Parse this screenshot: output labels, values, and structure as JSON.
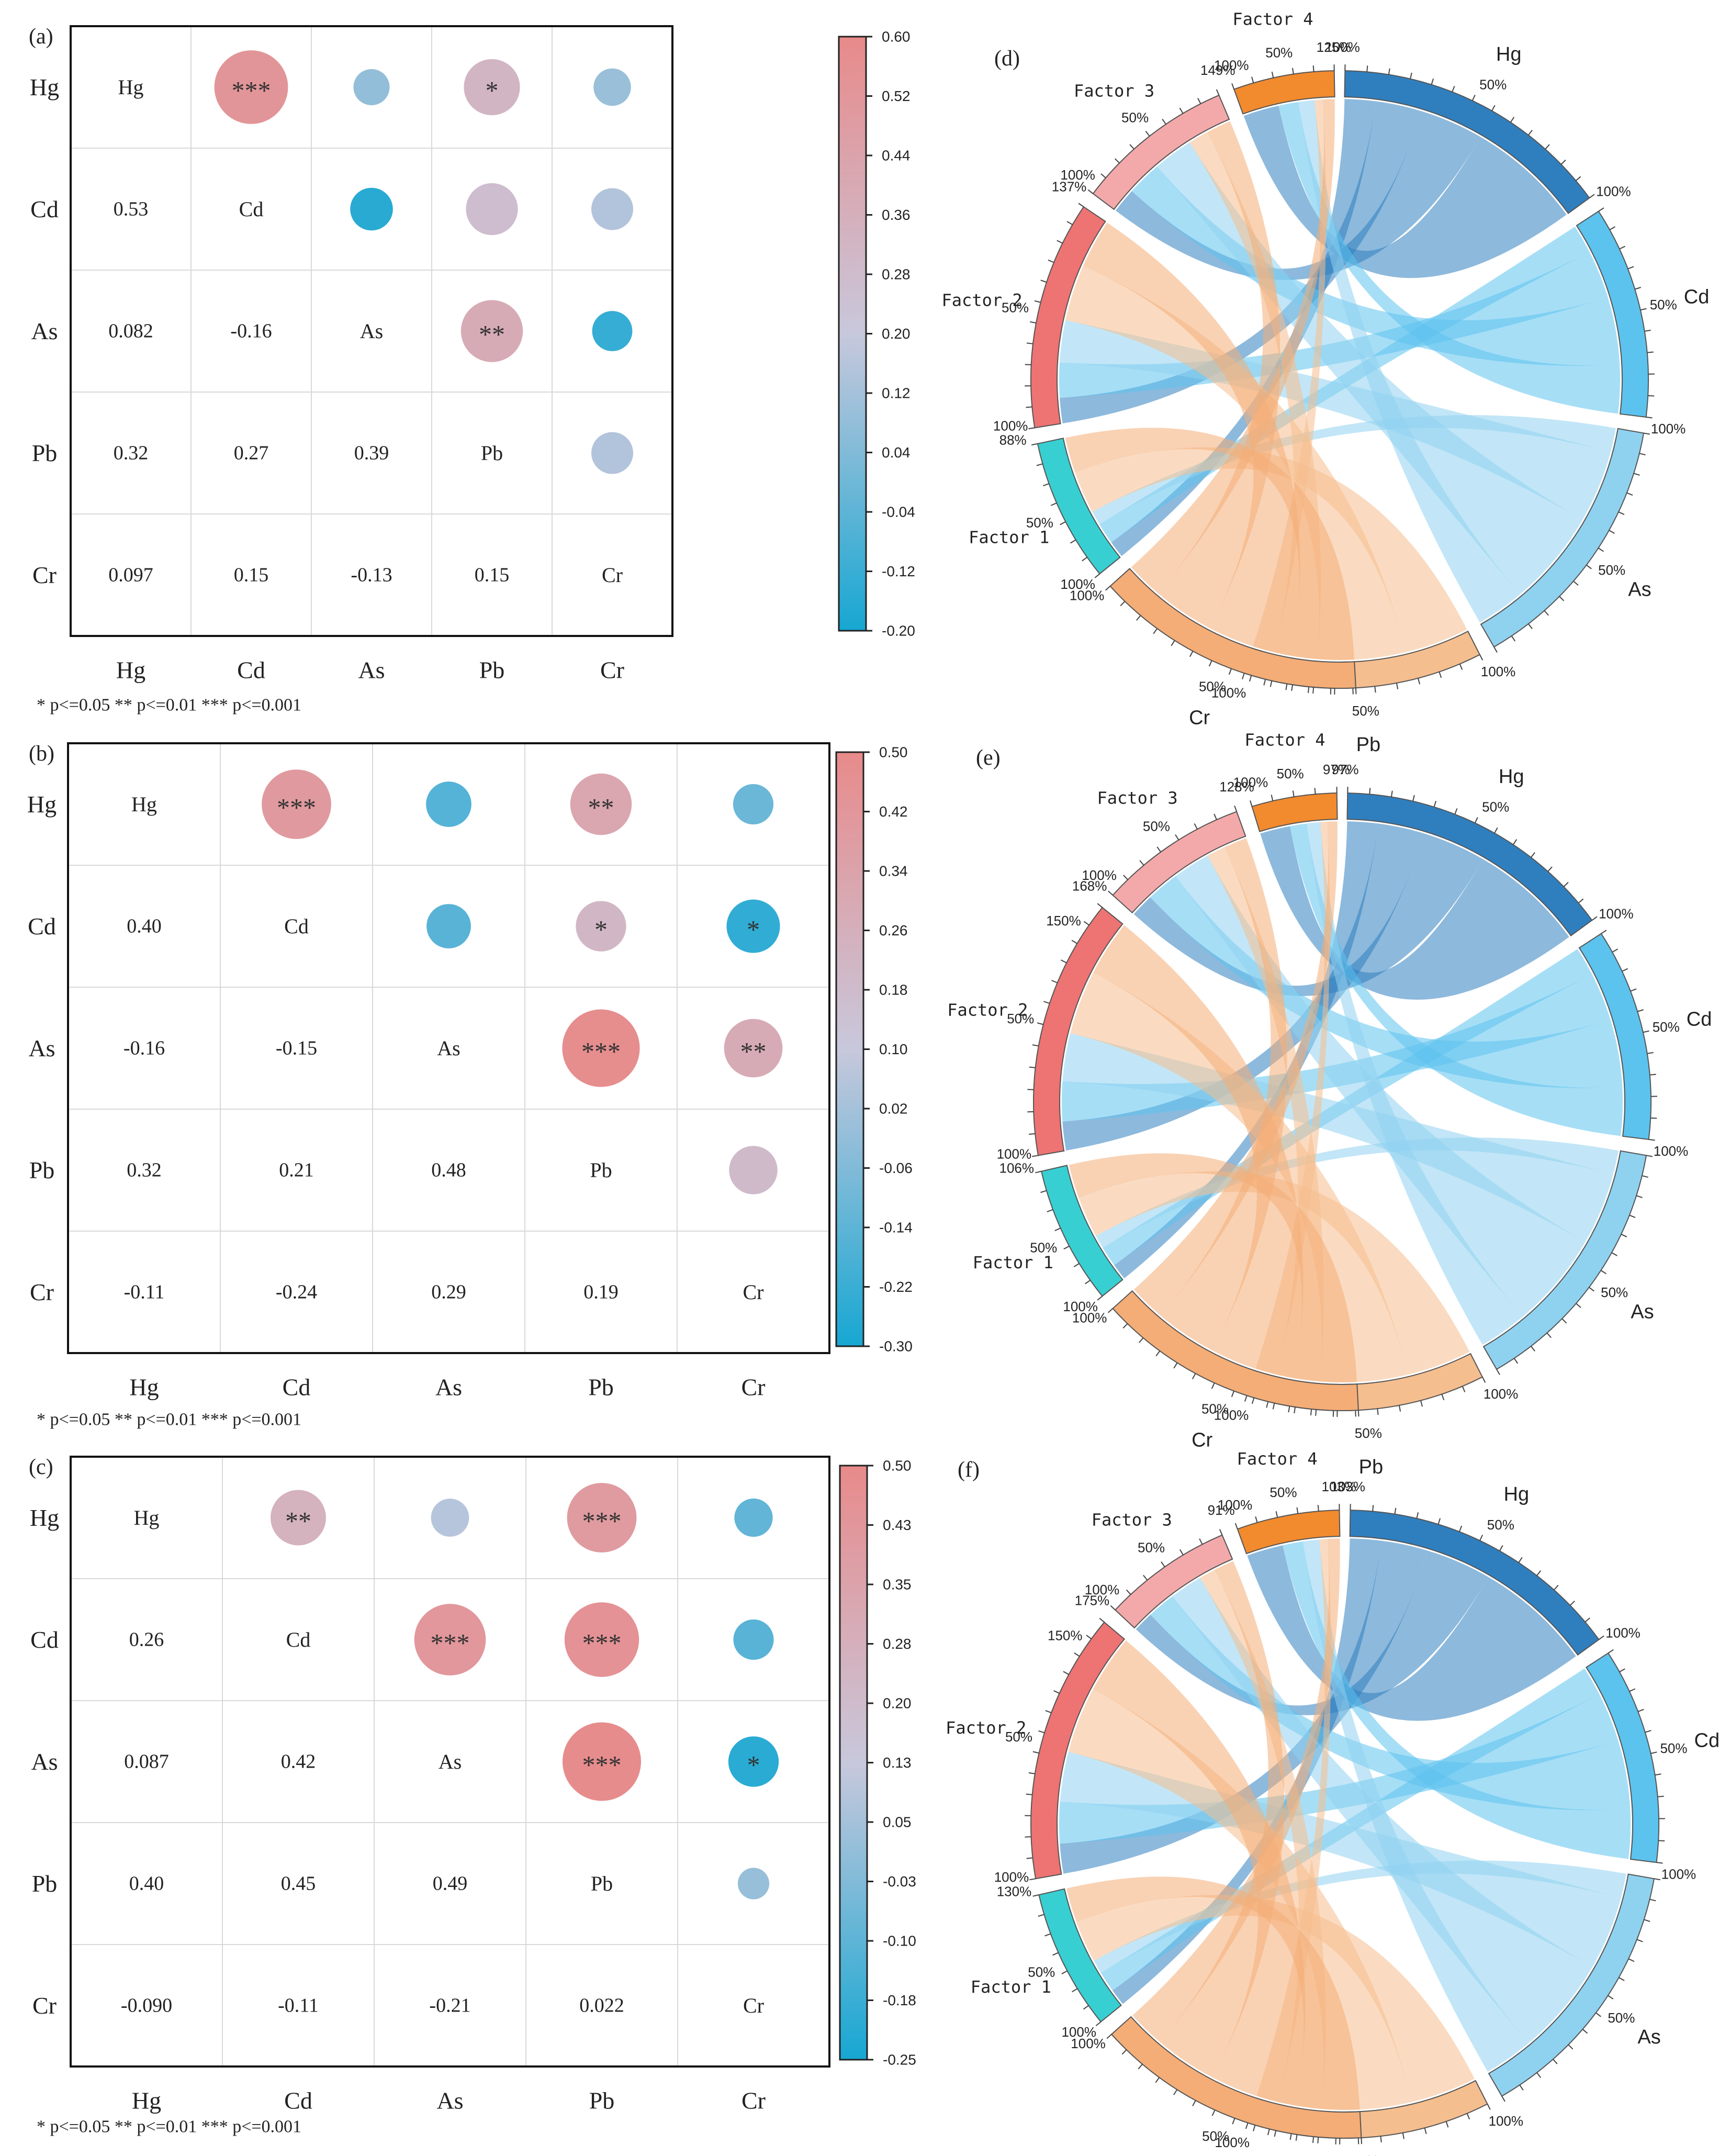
{
  "chart_data": [
    {
      "type": "heatmap",
      "panel_label": "(a)",
      "labels": [
        "Hg",
        "Cd",
        "As",
        "Pb",
        "Cr"
      ],
      "lower": [
        [
          "",
          "",
          "",
          "",
          ""
        ],
        [
          "0.53",
          "",
          "",
          "",
          ""
        ],
        [
          "0.082",
          "-0.16",
          "",
          "",
          ""
        ],
        [
          "0.32",
          "0.27",
          "0.39",
          "",
          ""
        ],
        [
          "0.097",
          "0.15",
          "-0.13",
          "0.15",
          ""
        ]
      ],
      "upper_values": [
        [
          null,
          0.53,
          0.082,
          0.32,
          0.097
        ],
        [
          null,
          null,
          -0.16,
          0.27,
          0.15
        ],
        [
          null,
          null,
          null,
          0.39,
          -0.13
        ],
        [
          null,
          null,
          null,
          null,
          0.15
        ],
        [
          null,
          null,
          null,
          null,
          null
        ]
      ],
      "significance": [
        [
          "",
          "***",
          "",
          "*",
          ""
        ],
        [
          "",
          "",
          "",
          "",
          ""
        ],
        [
          "",
          "",
          "",
          "**",
          ""
        ],
        [
          "",
          "",
          "",
          "",
          ""
        ],
        [
          "",
          "",
          "",
          "",
          ""
        ]
      ],
      "colorbar": {
        "min": -0.2,
        "max": 0.6,
        "ticks": [
          "0.60",
          "0.52",
          "0.44",
          "0.36",
          "0.28",
          "0.20",
          "0.12",
          "0.04",
          "-0.04",
          "-0.12",
          "-0.20"
        ]
      },
      "legend_text": "* p<=0.05  ** p<=0.01  *** p<=0.001"
    },
    {
      "type": "heatmap",
      "panel_label": "(b)",
      "labels": [
        "Hg",
        "Cd",
        "As",
        "Pb",
        "Cr"
      ],
      "lower": [
        [
          "",
          "",
          "",
          "",
          ""
        ],
        [
          "0.40",
          "",
          "",
          "",
          ""
        ],
        [
          "-0.16",
          "-0.15",
          "",
          "",
          ""
        ],
        [
          "0.32",
          "0.21",
          "0.48",
          "",
          ""
        ],
        [
          "-0.11",
          "-0.24",
          "0.29",
          "0.19",
          ""
        ]
      ],
      "upper_values": [
        [
          null,
          0.4,
          -0.16,
          0.32,
          -0.11
        ],
        [
          null,
          null,
          -0.15,
          0.21,
          -0.24
        ],
        [
          null,
          null,
          null,
          0.48,
          0.29
        ],
        [
          null,
          null,
          null,
          null,
          0.19
        ],
        [
          null,
          null,
          null,
          null,
          null
        ]
      ],
      "significance": [
        [
          "",
          "***",
          "",
          "**",
          ""
        ],
        [
          "",
          "",
          "",
          "*",
          "*"
        ],
        [
          "",
          "",
          "",
          "***",
          "**"
        ],
        [
          "",
          "",
          "",
          "",
          ""
        ],
        [
          "",
          "",
          "",
          "",
          ""
        ]
      ],
      "colorbar": {
        "min": -0.3,
        "max": 0.5,
        "ticks": [
          "0.50",
          "0.42",
          "0.34",
          "0.26",
          "0.18",
          "0.10",
          "0.02",
          "-0.06",
          "-0.14",
          "-0.22",
          "-0.30"
        ]
      },
      "legend_text": "* p<=0.05  ** p<=0.01  *** p<=0.001"
    },
    {
      "type": "heatmap",
      "panel_label": "(c)",
      "labels": [
        "Hg",
        "Cd",
        "As",
        "Pb",
        "Cr"
      ],
      "lower": [
        [
          "",
          "",
          "",
          "",
          ""
        ],
        [
          "0.26",
          "",
          "",
          "",
          ""
        ],
        [
          "0.087",
          "0.42",
          "",
          "",
          ""
        ],
        [
          "0.40",
          "0.45",
          "0.49",
          "",
          ""
        ],
        [
          "-0.090",
          "-0.11",
          "-0.21",
          "0.022",
          ""
        ]
      ],
      "upper_values": [
        [
          null,
          0.26,
          0.087,
          0.4,
          -0.09
        ],
        [
          null,
          null,
          0.42,
          0.45,
          -0.11
        ],
        [
          null,
          null,
          null,
          0.49,
          -0.21
        ],
        [
          null,
          null,
          null,
          null,
          0.022
        ],
        [
          null,
          null,
          null,
          null,
          null
        ]
      ],
      "significance": [
        [
          "",
          "**",
          "",
          "***",
          ""
        ],
        [
          "",
          "",
          "***",
          "***",
          ""
        ],
        [
          "",
          "",
          "",
          "***",
          "*"
        ],
        [
          "",
          "",
          "",
          "",
          ""
        ],
        [
          "",
          "",
          "",
          "",
          ""
        ]
      ],
      "colorbar": {
        "min": -0.25,
        "max": 0.5,
        "ticks": [
          "0.50",
          "0.43",
          "0.35",
          "0.28",
          "0.20",
          "0.13",
          "0.05",
          "-0.03",
          "-0.10",
          "-0.18",
          "-0.25"
        ]
      },
      "legend_text": "* p<=0.05  ** p<=0.01  *** p<=0.001"
    },
    {
      "type": "chord",
      "panel_label": "(d)",
      "segments": [
        {
          "name": "Hg",
          "top_label": "125%",
          "end_label": "100%"
        },
        {
          "name": "Cd",
          "end_label": "100%"
        },
        {
          "name": "As",
          "end_label": "100%"
        },
        {
          "name": "Pb",
          "end_label": "100%"
        },
        {
          "name": "Cr",
          "end_label": "100%"
        },
        {
          "name": "Factor 1",
          "end_label": "88%"
        },
        {
          "name": "Factor 2",
          "end_label": "137%"
        },
        {
          "name": "Factor 3",
          "end_label": "149%"
        },
        {
          "name": "Factor 4",
          "end_label": "100%"
        }
      ],
      "mid_label": "50%",
      "full_label": "100%"
    },
    {
      "type": "chord",
      "panel_label": "(e)",
      "segments": [
        {
          "name": "Hg",
          "top_label": "97%",
          "end_label": "100%"
        },
        {
          "name": "Cd",
          "end_label": "100%"
        },
        {
          "name": "As",
          "end_label": "100%"
        },
        {
          "name": "Pb",
          "end_label": "100%"
        },
        {
          "name": "Cr",
          "end_label": "100%"
        },
        {
          "name": "Factor 1",
          "end_label": "106%"
        },
        {
          "name": "Factor 2",
          "end_label": "168%",
          "extra_label": "150%"
        },
        {
          "name": "Factor 3",
          "end_label": "128%"
        },
        {
          "name": "Factor 4",
          "end_label": "97%"
        }
      ],
      "mid_label": "50%",
      "full_label": "100%"
    },
    {
      "type": "chord",
      "panel_label": "(f)",
      "segments": [
        {
          "name": "Hg",
          "top_label": "103%",
          "end_label": "100%"
        },
        {
          "name": "Cd",
          "end_label": "100%"
        },
        {
          "name": "As",
          "end_label": "100%"
        },
        {
          "name": "Pb",
          "end_label": "100%"
        },
        {
          "name": "Cr",
          "end_label": "100%"
        },
        {
          "name": "Factor 1",
          "end_label": "130%"
        },
        {
          "name": "Factor 2",
          "end_label": "175%",
          "extra_label": "150%"
        },
        {
          "name": "Factor 3",
          "end_label": "91%"
        },
        {
          "name": "Factor 4",
          "end_label": "103%"
        }
      ],
      "mid_label": "50%",
      "full_label": "100%"
    }
  ],
  "colors": {
    "pos_high": "#e88a8a",
    "neutral": "#c8c8dc",
    "neg_low": "#16a7d2",
    "hg": "#2f7fbf",
    "cd": "#5cc3ee",
    "as": "#8fd2f0",
    "pb": "#f5be8e",
    "cr": "#f4ad76",
    "factor1": "#38cfd2",
    "factor2": "#ee7373",
    "factor3": "#f3a9aa",
    "factor4": "#f28a2e"
  }
}
